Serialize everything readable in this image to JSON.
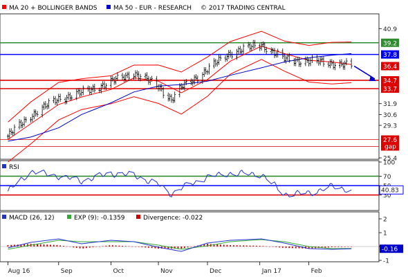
{
  "header": {
    "legend1_label": "MA 20 + BOLLINGER BANDS",
    "legend2_label": "MA 50 - EUR - RESEARCH",
    "copyright": "© 2017 TRADING CENTRAL"
  },
  "colors": {
    "ma20": "#ff0000",
    "ma50": "#0000cc",
    "resistance_green": "#2e8b2e",
    "pivot_blue": "#0000ff",
    "support_red": "#dd0000",
    "macd_line": "#2233cc",
    "exp_line": "#33aa33",
    "divergence": "#cc0000",
    "candle": "#000000"
  },
  "chart_data": [
    {
      "type": "candlestick",
      "panel": "price",
      "ylim": [
        25.4,
        42.5
      ],
      "y_ticks": [
        "40.9",
        "39.2",
        "37.8",
        "36.4",
        "34.7",
        "33.7",
        "31.9",
        "30.6",
        "29.3",
        "27.6",
        "25.4"
      ],
      "x_ticks": [
        "Aug 16",
        "Sep",
        "Oct",
        "Nov",
        "Dec",
        "Jan 17",
        "Feb"
      ],
      "levels": [
        {
          "value": 39.2,
          "label": "39.2",
          "kind": "resistance",
          "color": "#2e8b2e"
        },
        {
          "value": 37.8,
          "label": "37.8",
          "kind": "pivot",
          "color": "#0000ff"
        },
        {
          "value": 36.4,
          "label": "36.4",
          "kind": "last",
          "color": "#dd0000"
        },
        {
          "value": 34.7,
          "label": "34.7",
          "kind": "support",
          "color": "#dd0000"
        },
        {
          "value": 33.7,
          "label": "33.7",
          "kind": "support",
          "color": "#dd0000"
        },
        {
          "value": 27.6,
          "label": "27.6",
          "sublabel": "gap",
          "kind": "gap",
          "color": "#dd0000"
        }
      ],
      "forecast_arrow": {
        "from": 36.4,
        "to": 34.7,
        "color": "#0000cc"
      },
      "series": [
        {
          "name": "Price",
          "x": [
            "2016-08-01",
            "2016-08-15",
            "2016-09-01",
            "2016-09-15",
            "2016-10-03",
            "2016-10-17",
            "2016-11-01",
            "2016-11-09",
            "2016-11-15",
            "2016-12-01",
            "2016-12-15",
            "2017-01-03",
            "2017-01-17",
            "2017-02-01",
            "2017-02-15",
            "2017-02-27"
          ],
          "values": [
            28.0,
            30.5,
            32.5,
            33.2,
            34.5,
            35.6,
            34.0,
            32.4,
            33.8,
            36.0,
            38.0,
            39.0,
            37.2,
            37.0,
            36.8,
            36.4
          ]
        },
        {
          "name": "MA 20",
          "x": [
            "2016-08-01",
            "2016-08-15",
            "2016-09-01",
            "2016-09-15",
            "2016-10-03",
            "2016-10-17",
            "2016-11-01",
            "2016-11-15",
            "2016-12-01",
            "2016-12-15",
            "2017-01-03",
            "2017-01-17",
            "2017-02-01",
            "2017-02-15",
            "2017-02-27"
          ],
          "values": [
            27.6,
            29.5,
            31.8,
            32.7,
            33.6,
            35.0,
            34.6,
            33.2,
            34.8,
            37.0,
            38.8,
            37.9,
            37.1,
            36.9,
            36.6
          ]
        },
        {
          "name": "MA 50",
          "x": [
            "2016-08-01",
            "2016-08-15",
            "2016-09-01",
            "2016-09-15",
            "2016-10-03",
            "2016-10-17",
            "2016-11-01",
            "2016-11-15",
            "2016-12-01",
            "2016-12-15",
            "2017-01-03",
            "2017-01-17",
            "2017-02-01",
            "2017-02-15",
            "2017-02-27"
          ],
          "values": [
            27.4,
            27.9,
            29.0,
            30.6,
            32.0,
            33.3,
            34.0,
            34.2,
            34.6,
            35.3,
            36.2,
            36.9,
            37.4,
            37.7,
            37.9
          ]
        }
      ]
    },
    {
      "type": "line",
      "panel": "rsi",
      "title": "RSI",
      "ylim": [
        0,
        100
      ],
      "y_ticks": [
        "100",
        "70",
        "50",
        "30"
      ],
      "levels": [
        {
          "value": 70,
          "color": "#2e8b2e"
        },
        {
          "value": 50,
          "color": "#0000ff"
        },
        {
          "value": 30,
          "color": "#dd0000"
        }
      ],
      "last_value": "40.83",
      "series": [
        {
          "name": "RSI",
          "x": [
            "2016-08-01",
            "2016-08-15",
            "2016-09-01",
            "2016-09-15",
            "2016-10-03",
            "2016-10-17",
            "2016-11-01",
            "2016-11-09",
            "2016-11-15",
            "2016-12-01",
            "2016-12-15",
            "2017-01-03",
            "2017-01-17",
            "2017-02-01",
            "2017-02-15",
            "2017-02-27"
          ],
          "values": [
            38,
            80,
            70,
            60,
            76,
            72,
            52,
            32,
            45,
            68,
            76,
            74,
            32,
            34,
            48,
            40.83
          ]
        }
      ]
    },
    {
      "type": "line",
      "panel": "macd",
      "title": "MACD (26, 12)",
      "ylim": [
        -1,
        2.4
      ],
      "y_ticks": [
        "2",
        "1",
        "0",
        "-1"
      ],
      "last_value": "-0.16",
      "legend": [
        {
          "label": "MACD (26, 12)",
          "color": "#2233cc"
        },
        {
          "label": "EXP (9): -0.1359",
          "color": "#33aa33"
        },
        {
          "label": "Divergence: -0.022",
          "color": "#cc0000"
        }
      ],
      "series": [
        {
          "name": "MACD (26, 12)",
          "x": [
            "2016-08-01",
            "2016-08-15",
            "2016-09-01",
            "2016-09-15",
            "2016-10-03",
            "2016-10-17",
            "2016-11-01",
            "2016-11-15",
            "2016-12-01",
            "2016-12-15",
            "2017-01-03",
            "2017-01-17",
            "2017-02-01",
            "2017-02-15",
            "2017-02-27"
          ],
          "values": [
            -0.1,
            0.3,
            0.55,
            0.2,
            0.45,
            0.35,
            -0.05,
            -0.35,
            0.25,
            0.45,
            0.55,
            0.25,
            -0.15,
            -0.2,
            -0.16
          ]
        },
        {
          "name": "EXP (9)",
          "x": [
            "2016-08-01",
            "2016-08-15",
            "2016-09-01",
            "2016-09-15",
            "2016-10-03",
            "2016-10-17",
            "2016-11-01",
            "2016-11-15",
            "2016-12-01",
            "2016-12-15",
            "2017-01-03",
            "2017-01-17",
            "2017-02-01",
            "2017-02-15",
            "2017-02-27"
          ],
          "values": [
            -0.2,
            0.1,
            0.45,
            0.35,
            0.35,
            0.35,
            0.1,
            -0.2,
            0.05,
            0.35,
            0.5,
            0.35,
            0.0,
            -0.15,
            -0.1359
          ]
        },
        {
          "name": "Divergence",
          "x": [
            "2016-08-01",
            "2016-08-15",
            "2016-09-01",
            "2016-09-15",
            "2016-10-03",
            "2016-10-17",
            "2016-11-01",
            "2016-11-15",
            "2016-12-01",
            "2016-12-15",
            "2017-01-03",
            "2017-01-17",
            "2017-02-01",
            "2017-02-15",
            "2017-02-27"
          ],
          "values": [
            0.1,
            0.2,
            0.1,
            -0.15,
            0.1,
            0.0,
            -0.15,
            -0.15,
            0.2,
            0.1,
            0.05,
            -0.1,
            -0.15,
            -0.05,
            -0.022
          ]
        }
      ]
    }
  ]
}
